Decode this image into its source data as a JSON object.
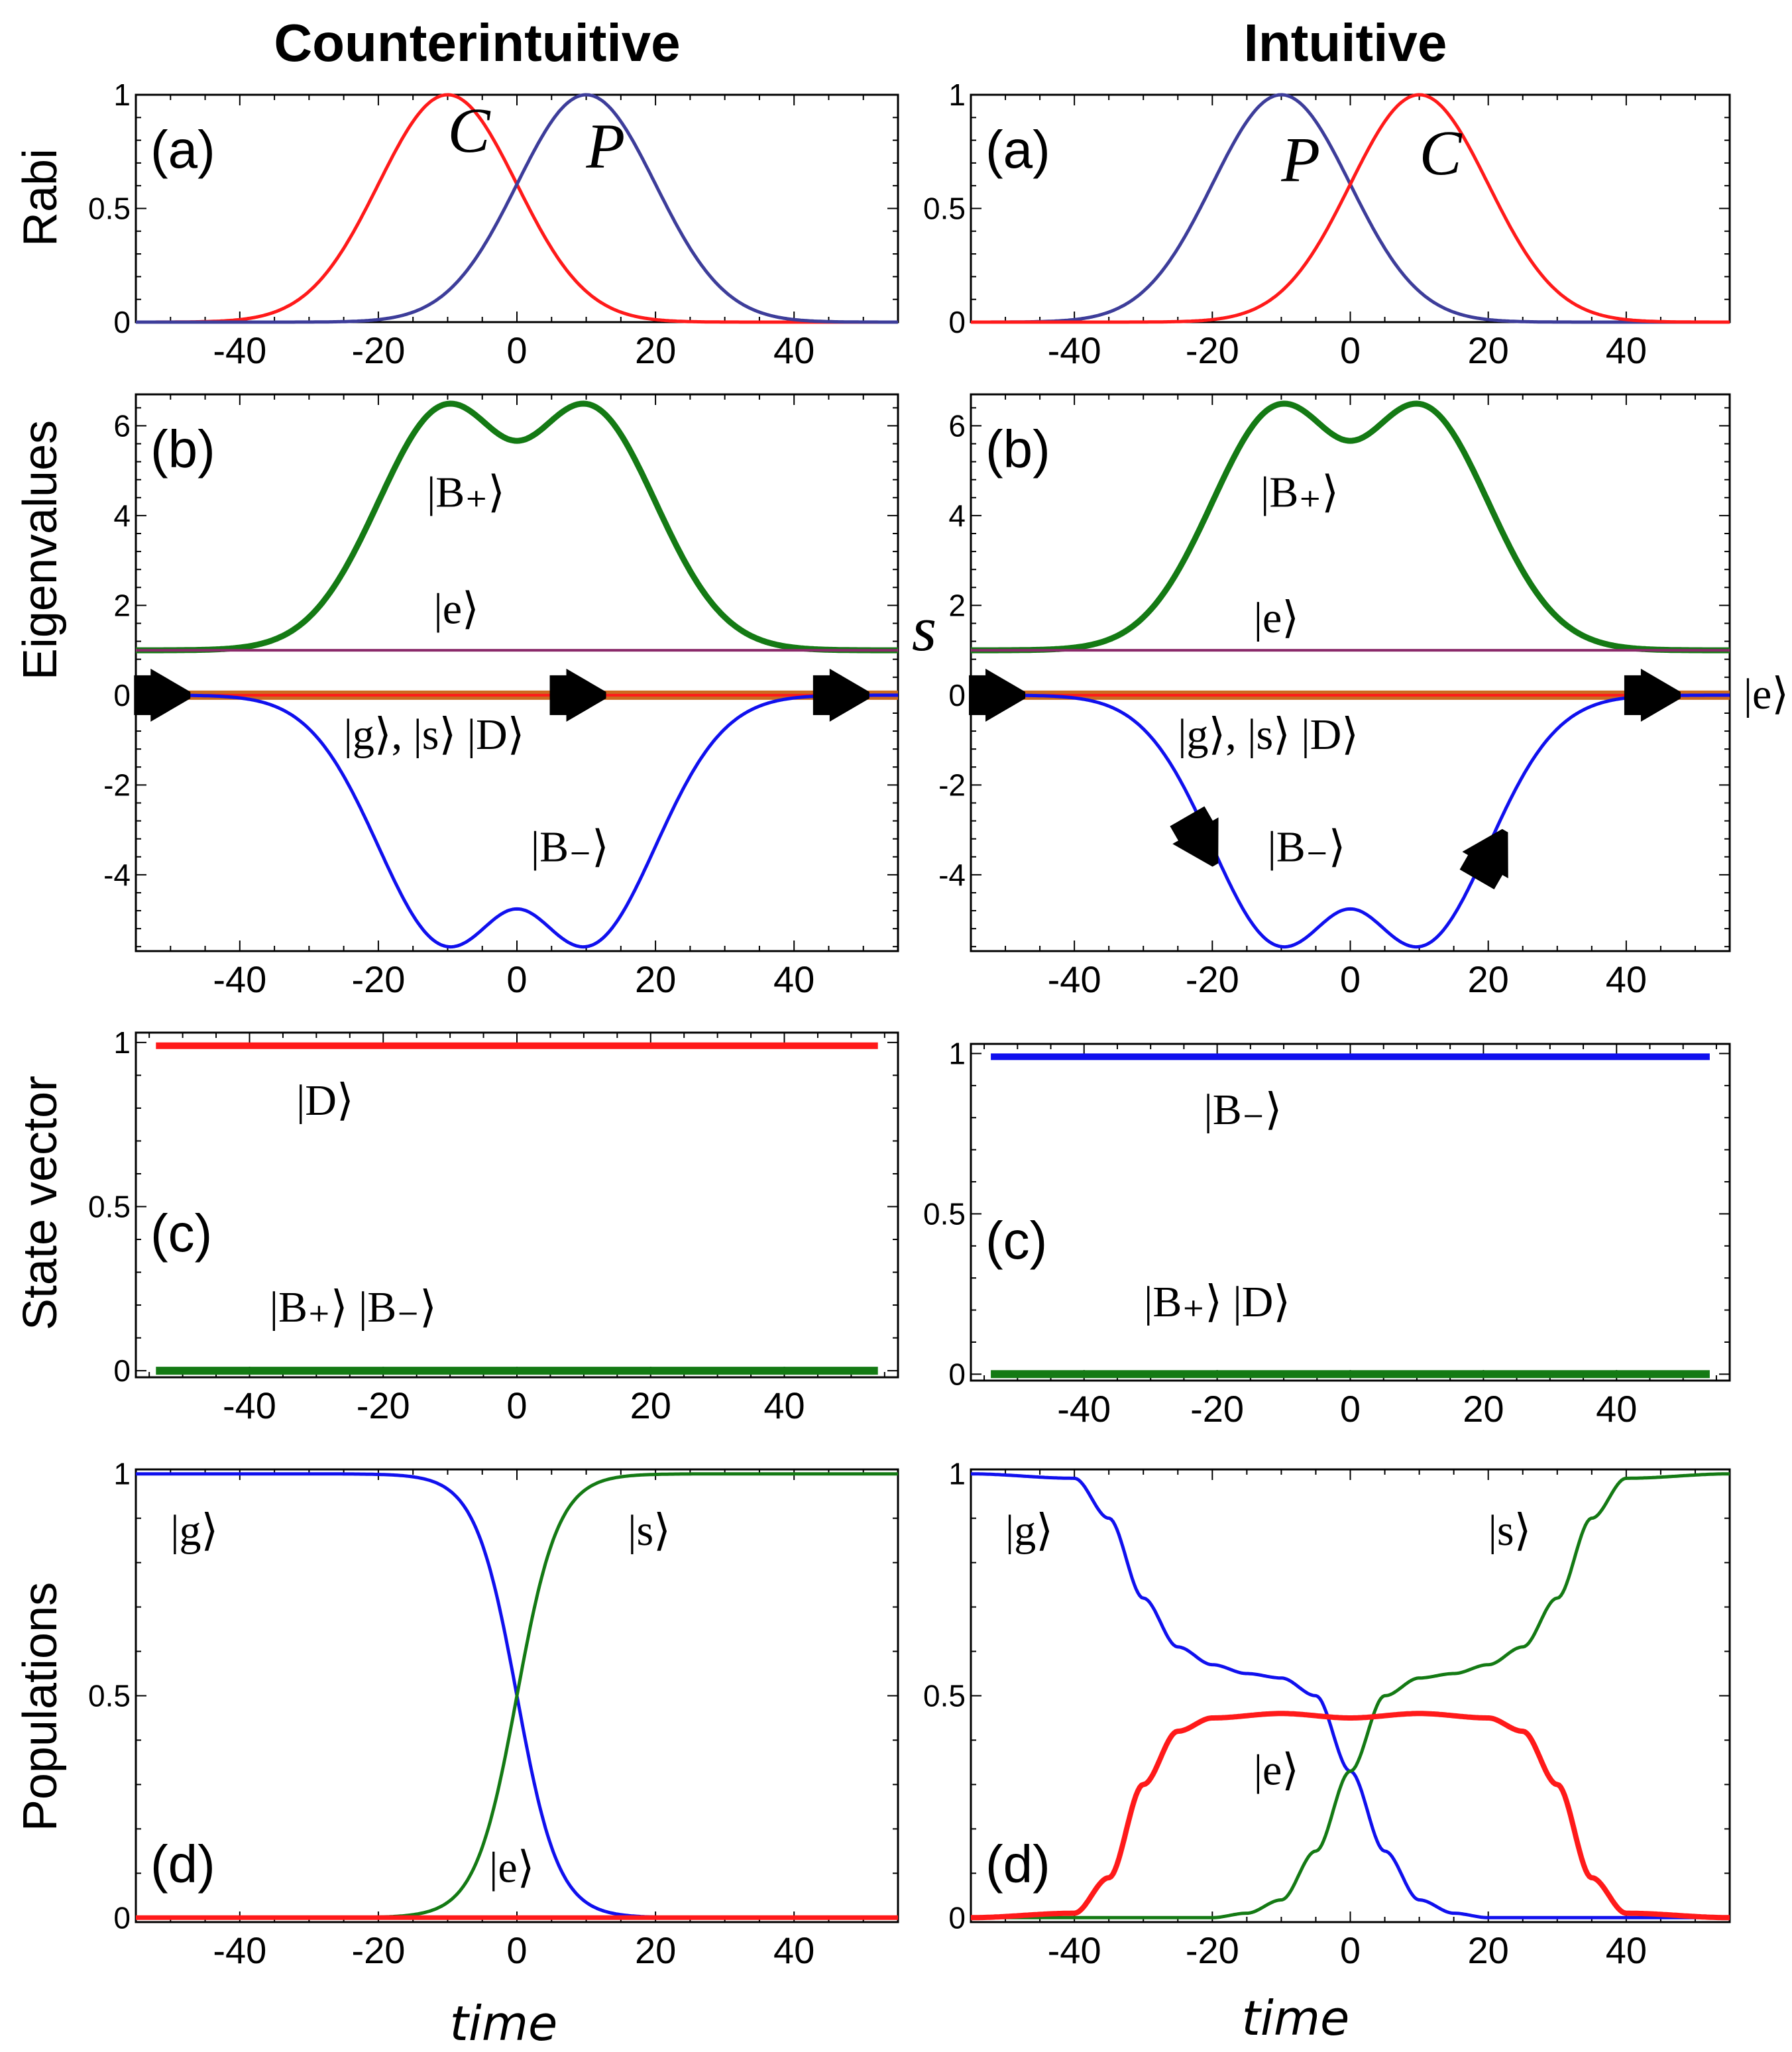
{
  "titles": {
    "left": "Counterintuitive",
    "right": "Intuitive"
  },
  "row_labels": [
    "Rabi",
    "Eigenvalues",
    "State vector",
    "Populations"
  ],
  "xlabel": "time",
  "colors": {
    "red": "#ff1a1a",
    "navy": "#3d3d9a",
    "blue": "#1010ee",
    "green": "#147a14",
    "purple": "#8a2a6a",
    "orange": "#cc6a20"
  },
  "chart_data": [
    {
      "id": "cnt-rabi",
      "type": "line",
      "panel_label": "(a)",
      "column": "Counterintuitive",
      "ylabel": "Rabi",
      "xlim": [
        -55,
        55
      ],
      "ylim": [
        0,
        1
      ],
      "xticks": [
        -40,
        -20,
        0,
        20,
        40
      ],
      "xtick_labels": [
        "-40",
        "-20",
        "0",
        "20",
        "40"
      ],
      "yticks": [
        0,
        0.5,
        1
      ],
      "ytick_labels": [
        "0",
        "0.5",
        "1"
      ],
      "annotations": [
        {
          "text": "C",
          "x": -10,
          "y": 0.75
        },
        {
          "text": "P",
          "x": 10,
          "y": 0.68
        }
      ],
      "series": [
        {
          "name": "C (Stokes/coupling)",
          "color": "red",
          "gauss": [
            1,
            -10,
            10
          ]
        },
        {
          "name": "P (pump)",
          "color": "navy",
          "gauss": [
            1,
            10,
            10
          ]
        }
      ]
    },
    {
      "id": "int-rabi",
      "type": "line",
      "panel_label": "(a)",
      "column": "Intuitive",
      "ylabel": "Rabi",
      "xlim": [
        -55,
        55
      ],
      "ylim": [
        0,
        1
      ],
      "xticks": [
        -40,
        -20,
        0,
        20,
        40
      ],
      "xtick_labels": [
        "-40",
        "-20",
        "0",
        "20",
        "40"
      ],
      "yticks": [
        0,
        0.5,
        1
      ],
      "ytick_labels": [
        "0",
        "0.5",
        "1"
      ],
      "annotations": [
        {
          "text": "P",
          "x": -10,
          "y": 0.62
        },
        {
          "text": "C",
          "x": 10,
          "y": 0.65
        }
      ],
      "series": [
        {
          "name": "P (pump)",
          "color": "navy",
          "gauss": [
            1,
            -10,
            10
          ]
        },
        {
          "name": "C (Stokes/coupling)",
          "color": "red",
          "gauss": [
            1,
            10,
            10
          ]
        }
      ]
    },
    {
      "id": "cnt-eig",
      "type": "line",
      "panel_label": "(b)",
      "column": "Counterintuitive",
      "ylabel": "Eigenvalues",
      "xlim": [
        -55,
        55
      ],
      "ylim": [
        -5.7,
        6.7
      ],
      "xticks": [
        -40,
        -20,
        0,
        20,
        40
      ],
      "xtick_labels": [
        "-40",
        "-20",
        "0",
        "20",
        "40"
      ],
      "yticks": [
        -4,
        -2,
        0,
        2,
        4,
        6
      ],
      "ytick_labels": [
        "-4",
        "-2",
        "0",
        "2",
        "4",
        "6"
      ],
      "annotations": [
        {
          "text": "|B₊⟩",
          "x": -13,
          "y": 4.2
        },
        {
          "text": "|e⟩",
          "x": -12,
          "y": 1.6
        },
        {
          "text": "|g⟩, |s⟩ |D⟩",
          "x": -25,
          "y": -1.2
        },
        {
          "text": "|B₋⟩",
          "x": 2,
          "y": -3.7
        },
        {
          "text": "s",
          "x": 57,
          "y": 1.0
        }
      ],
      "arrows": [
        {
          "x": -50,
          "y": 0,
          "angle": 0
        },
        {
          "x": 10,
          "y": 0,
          "angle": 0
        },
        {
          "x": 48,
          "y": 0,
          "angle": 0
        }
      ],
      "series": [
        {
          "name": "B+",
          "color": "green",
          "width": 9,
          "eig": "plus",
          "offset": 1
        },
        {
          "name": "e (flat)",
          "color": "purple",
          "width": 4,
          "const": 1
        },
        {
          "name": "g, s, D (flat)",
          "color": "orange",
          "width": 14,
          "const": 0
        },
        {
          "name": "B-",
          "color": "blue",
          "width": 5,
          "eig": "minus",
          "offset": 0
        }
      ]
    },
    {
      "id": "int-eig",
      "type": "line",
      "panel_label": "(b)",
      "column": "Intuitive",
      "ylabel": "Eigenvalues",
      "xlim": [
        -55,
        55
      ],
      "ylim": [
        -5.7,
        6.7
      ],
      "xticks": [
        -40,
        -20,
        0,
        20,
        40
      ],
      "xtick_labels": [
        "-40",
        "-20",
        "0",
        "20",
        "40"
      ],
      "yticks": [
        -4,
        -2,
        0,
        2,
        4,
        6
      ],
      "ytick_labels": [
        "-4",
        "-2",
        "0",
        "2",
        "4",
        "6"
      ],
      "annotations": [
        {
          "text": "|B₊⟩",
          "x": -13,
          "y": 4.2
        },
        {
          "text": "|e⟩",
          "x": -14,
          "y": 1.4
        },
        {
          "text": "|g⟩, |s⟩ |D⟩",
          "x": -25,
          "y": -1.2
        },
        {
          "text": "|B₋⟩",
          "x": -12,
          "y": -3.7
        },
        {
          "text": "|e⟩",
          "x": 57,
          "y": -0.3
        }
      ],
      "arrows": [
        {
          "x": -50,
          "y": 0,
          "angle": 0
        },
        {
          "x": -21,
          "y": -3.4,
          "angle": 60
        },
        {
          "x": 21,
          "y": -3.4,
          "angle": -60
        },
        {
          "x": 45,
          "y": 0,
          "angle": 0
        }
      ],
      "series": [
        {
          "name": "B+",
          "color": "green",
          "width": 9,
          "eig": "plus",
          "offset": 1
        },
        {
          "name": "e (flat)",
          "color": "purple",
          "width": 4,
          "const": 1
        },
        {
          "name": "g, s, D (flat)",
          "color": "orange",
          "width": 14,
          "const": 0
        },
        {
          "name": "B-",
          "color": "blue",
          "width": 5,
          "eig": "minus",
          "offset": 0
        }
      ]
    },
    {
      "id": "cnt-state",
      "type": "line",
      "panel_label": "(c)",
      "column": "Counterintuitive",
      "ylabel": "State vector",
      "xlim": [
        -57,
        57
      ],
      "ylim": [
        -0.02,
        1.03
      ],
      "xticks": [
        -40,
        -20,
        0,
        20,
        40
      ],
      "xtick_labels": [
        "-40",
        "-20",
        "0",
        "20",
        "40"
      ],
      "yticks": [
        0,
        0.5,
        1
      ],
      "ytick_labels": [
        "0",
        "0.5",
        "1"
      ],
      "annotations": [
        {
          "text": "|D⟩",
          "x": -33,
          "y": 0.78
        },
        {
          "text": "|B₊⟩ |B₋⟩",
          "x": -37,
          "y": 0.15
        }
      ],
      "series": [
        {
          "name": "D",
          "color": "red",
          "width": 10,
          "const": 0.99,
          "x_range": [
            -54,
            54
          ]
        },
        {
          "name": "B+ and B-",
          "color": "green",
          "width": 12,
          "const": 0.0,
          "x_range": [
            -54,
            54
          ]
        }
      ]
    },
    {
      "id": "int-state",
      "type": "line",
      "panel_label": "(c)",
      "column": "Intuitive",
      "ylabel": "State vector",
      "xlim": [
        -57,
        57
      ],
      "ylim": [
        -0.02,
        1.03
      ],
      "xticks": [
        -40,
        -20,
        0,
        20,
        40
      ],
      "xtick_labels": [
        "-40",
        "-20",
        "0",
        "20",
        "40"
      ],
      "yticks": [
        0,
        0.5,
        1
      ],
      "ytick_labels": [
        "0",
        "0.5",
        "1"
      ],
      "annotations": [
        {
          "text": "|B₋⟩",
          "x": -22,
          "y": 0.78
        },
        {
          "text": "|B₊⟩  |D⟩",
          "x": -31,
          "y": 0.18
        }
      ],
      "series": [
        {
          "name": "B-",
          "color": "blue",
          "width": 10,
          "const": 0.99,
          "x_range": [
            -54,
            54
          ]
        },
        {
          "name": "B+ and D",
          "color": "green",
          "width": 12,
          "const": 0.0,
          "x_range": [
            -54,
            54
          ]
        }
      ]
    },
    {
      "id": "cnt-pop",
      "type": "line",
      "panel_label": "(d)",
      "column": "Counterintuitive",
      "ylabel": "Populations",
      "xlim": [
        -55,
        55
      ],
      "ylim": [
        -0.01,
        1.01
      ],
      "xticks": [
        -40,
        -20,
        0,
        20,
        40
      ],
      "xtick_labels": [
        "-40",
        "-20",
        "0",
        "20",
        "40"
      ],
      "yticks": [
        0,
        0.5,
        1
      ],
      "ytick_labels": [
        "0",
        "0.5",
        "1"
      ],
      "annotations": [
        {
          "text": "|g⟩",
          "x": -50,
          "y": 0.84
        },
        {
          "text": "|s⟩",
          "x": 16,
          "y": 0.84
        },
        {
          "text": "|e⟩",
          "x": -4,
          "y": 0.08
        }
      ],
      "series": [
        {
          "name": "g",
          "color": "blue",
          "width": 5,
          "sigmoid": [
            1,
            0,
            0,
            3
          ]
        },
        {
          "name": "s",
          "color": "green",
          "width": 5,
          "sigmoid": [
            0,
            1,
            0,
            3
          ]
        },
        {
          "name": "e",
          "color": "red",
          "width": 7,
          "const": 0.0
        }
      ]
    },
    {
      "id": "int-pop",
      "type": "line",
      "panel_label": "(d)",
      "column": "Intuitive",
      "ylabel": "Populations",
      "xlim": [
        -55,
        55
      ],
      "ylim": [
        -0.01,
        1.01
      ],
      "xticks": [
        -40,
        -20,
        0,
        20,
        40
      ],
      "xtick_labels": [
        "-40",
        "-20",
        "0",
        "20",
        "40"
      ],
      "yticks": [
        0,
        0.5,
        1
      ],
      "ytick_labels": [
        "0",
        "0.5",
        "1"
      ],
      "annotations": [
        {
          "text": "|g⟩",
          "x": -50,
          "y": 0.84
        },
        {
          "text": "|s⟩",
          "x": 20,
          "y": 0.84
        },
        {
          "text": "|e⟩",
          "x": -14,
          "y": 0.3
        }
      ],
      "series": [
        {
          "name": "g",
          "color": "blue",
          "width": 5,
          "pts": [
            [
              -55,
              1
            ],
            [
              -40,
              0.99
            ],
            [
              -35,
              0.9
            ],
            [
              -30,
              0.72
            ],
            [
              -25,
              0.61
            ],
            [
              -20,
              0.57
            ],
            [
              -15,
              0.55
            ],
            [
              -10,
              0.54
            ],
            [
              -5,
              0.5
            ],
            [
              0,
              0.33
            ],
            [
              5,
              0.15
            ],
            [
              10,
              0.04
            ],
            [
              15,
              0.01
            ],
            [
              20,
              0
            ],
            [
              55,
              0
            ]
          ]
        },
        {
          "name": "s",
          "color": "green",
          "width": 5,
          "pts": [
            [
              -55,
              0
            ],
            [
              -20,
              0
            ],
            [
              -15,
              0.01
            ],
            [
              -10,
              0.04
            ],
            [
              -5,
              0.15
            ],
            [
              0,
              0.33
            ],
            [
              5,
              0.5
            ],
            [
              10,
              0.54
            ],
            [
              15,
              0.55
            ],
            [
              20,
              0.57
            ],
            [
              25,
              0.61
            ],
            [
              30,
              0.72
            ],
            [
              35,
              0.9
            ],
            [
              40,
              0.99
            ],
            [
              55,
              1
            ]
          ]
        },
        {
          "name": "e",
          "color": "red",
          "width": 8,
          "pts": [
            [
              -55,
              0
            ],
            [
              -40,
              0.01
            ],
            [
              -35,
              0.09
            ],
            [
              -30,
              0.3
            ],
            [
              -25,
              0.42
            ],
            [
              -20,
              0.45
            ],
            [
              -10,
              0.46
            ],
            [
              0,
              0.45
            ],
            [
              10,
              0.46
            ],
            [
              20,
              0.45
            ],
            [
              25,
              0.42
            ],
            [
              30,
              0.3
            ],
            [
              35,
              0.09
            ],
            [
              40,
              0.01
            ],
            [
              55,
              0
            ]
          ]
        }
      ]
    }
  ]
}
